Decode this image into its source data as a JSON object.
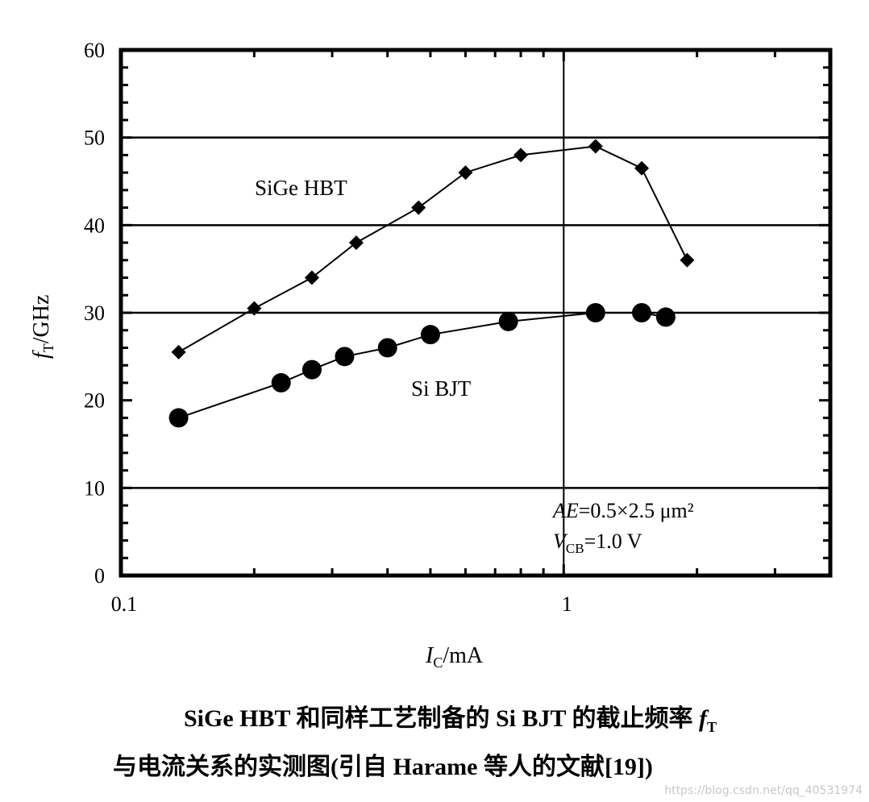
{
  "chart_data": {
    "type": "scatter",
    "x_scale": "log",
    "xlim": [
      0.1,
      4
    ],
    "ylim": [
      0,
      60
    ],
    "x_ticks": [
      0.1,
      1
    ],
    "x_tick_labels": [
      "0.1",
      "1"
    ],
    "y_ticks": [
      0,
      10,
      20,
      30,
      40,
      50,
      60
    ],
    "y_tick_labels": [
      "0",
      "10",
      "20",
      "30",
      "40",
      "50",
      "60"
    ],
    "gridlines_y": [
      10,
      30,
      40,
      50
    ],
    "gridlines_x": [
      1
    ],
    "xlabel_main": "I",
    "xlabel_sub": "C",
    "xlabel_unit": "/mA",
    "ylabel_main": "f",
    "ylabel_sub": "T",
    "ylabel_unit": "/GHz",
    "series": [
      {
        "name": "SiGe HBT",
        "marker": "diamond",
        "x": [
          0.135,
          0.2,
          0.27,
          0.34,
          0.47,
          0.6,
          0.8,
          1.18,
          1.5,
          1.9
        ],
        "y": [
          25.5,
          30.5,
          34,
          38,
          42,
          46,
          48,
          49,
          46.5,
          36
        ]
      },
      {
        "name": "Si BJT",
        "marker": "circle",
        "x": [
          0.135,
          0.23,
          0.27,
          0.32,
          0.4,
          0.5,
          0.75,
          1.18,
          1.5,
          1.7
        ],
        "y": [
          18,
          22,
          23.5,
          25,
          26,
          27.5,
          29,
          30,
          30,
          29.5
        ]
      }
    ],
    "annotations": {
      "area_lhs": "AE",
      "area_rhs": "=0.5×2.5  μm²",
      "vcb_main": "V",
      "vcb_sub": "CB",
      "vcb_rhs": "=1.0  V"
    }
  },
  "caption": {
    "line1_a": "SiGe HBT 和同样工艺制备的 Si BJT 的截止频率 ",
    "line1_f": "f",
    "line1_sub": "T",
    "line2": "与电流关系的实测图(引自 Harame 等人的文献[19])"
  },
  "watermark": "https://blog.csdn.net/qq_40531974"
}
